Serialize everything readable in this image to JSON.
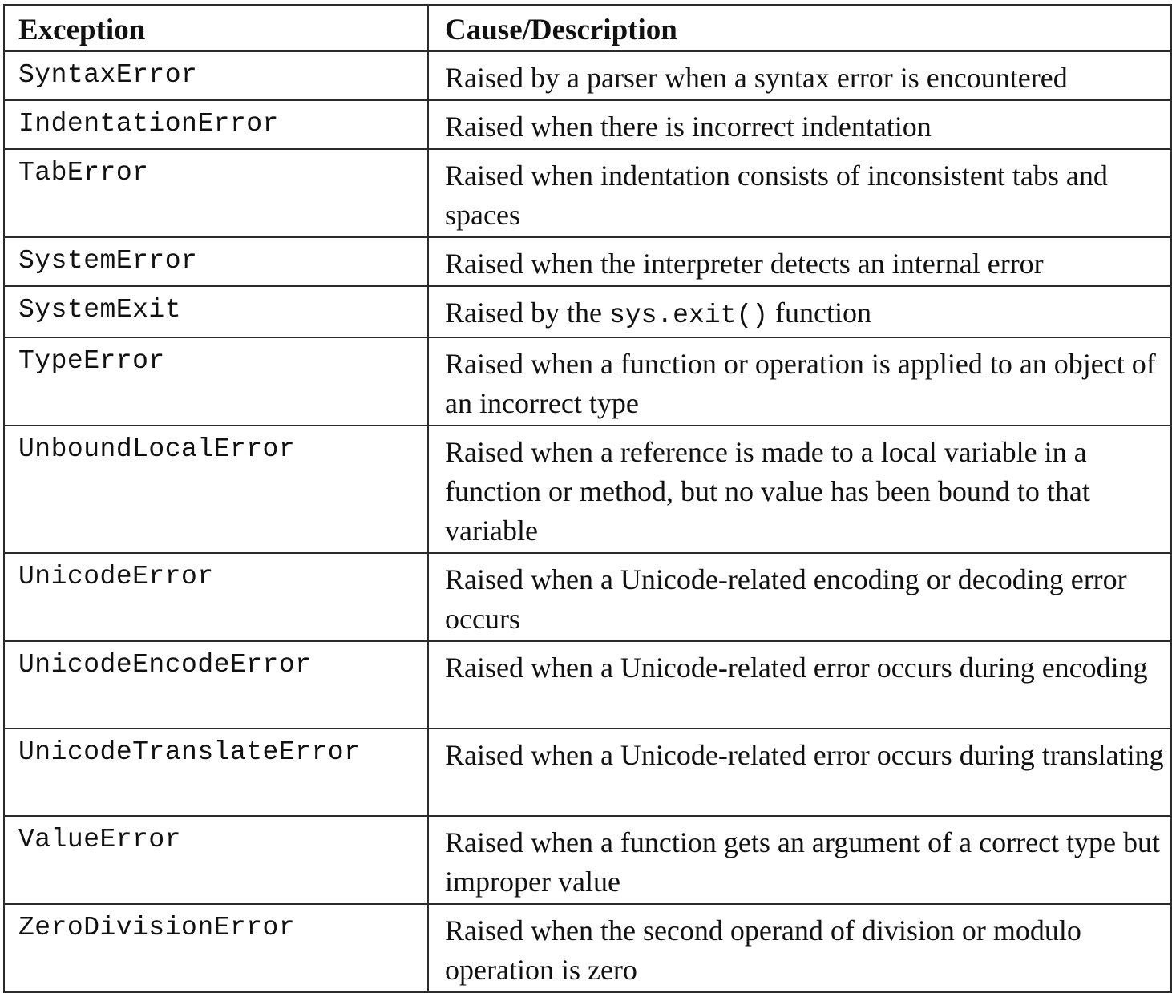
{
  "table": {
    "headers": [
      "Exception",
      "Cause/Description"
    ],
    "rows": [
      {
        "name": "SyntaxError",
        "desc": "Raised by a parser when a syntax error is encountered"
      },
      {
        "name": "IndentationError",
        "desc": "Raised when there is incorrect indentation"
      },
      {
        "name": "TabError",
        "desc": "Raised when indentation consists of inconsistent tabs and spaces"
      },
      {
        "name": "SystemError",
        "desc": "Raised when the interpreter detects an internal error"
      },
      {
        "name": "SystemExit",
        "desc_before": "Raised by the ",
        "desc_code": "sys.exit()",
        "desc_after": " function"
      },
      {
        "name": "TypeError",
        "desc": "Raised when a function or operation is applied to an object of an incorrect type"
      },
      {
        "name": "UnboundLocalError",
        "desc": "Raised when a reference is made to a local variable in a function or method, but no value has been bound to that variable"
      },
      {
        "name": "UnicodeError",
        "desc": "Raised when a Unicode-related encoding or decoding error occurs"
      },
      {
        "name": "UnicodeEncodeError",
        "desc": "Raised when a Unicode-related error occurs during encoding"
      },
      {
        "name": "UnicodeTranslateError",
        "desc": "Raised when a Unicode-related error occurs during translating"
      },
      {
        "name": "ValueError",
        "desc": "Raised when a function gets an argument of a correct type but improper value"
      },
      {
        "name": "ZeroDivisionError",
        "desc": "Raised when the second operand of division or modulo operation is zero"
      }
    ]
  }
}
